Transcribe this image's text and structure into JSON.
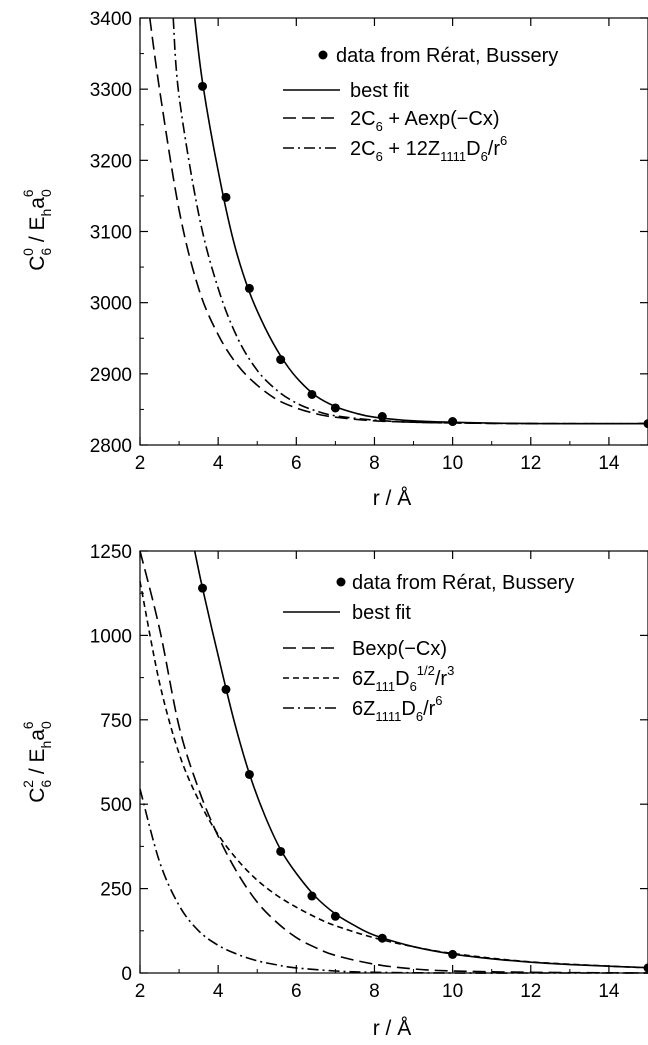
{
  "chart_data": [
    {
      "type": "line",
      "ylabel": "C₆⁰ / Eₕa₀⁶",
      "xlabel": "r / Å",
      "xlim": [
        2,
        15
      ],
      "ylim": [
        2800,
        3400
      ],
      "x_ticks": [
        2,
        4,
        6,
        8,
        10,
        12,
        14
      ],
      "y_ticks": [
        2800,
        2900,
        3000,
        3100,
        3200,
        3300,
        3400
      ],
      "grid": false,
      "legend_position": "top-right",
      "series": [
        {
          "name": "data from Rérat, Bussery",
          "style": "points",
          "x": [
            3.6,
            4.2,
            4.8,
            5.6,
            6.4,
            7.0,
            8.2,
            10.0,
            15.0
          ],
          "y": [
            3304,
            3148,
            3020,
            2920,
            2871,
            2852,
            2840,
            2833,
            2830
          ]
        },
        {
          "name": "best fit",
          "style": "solid",
          "x": [
            3.4,
            3.6,
            4.0,
            4.4,
            4.8,
            5.2,
            5.6,
            6.0,
            6.5,
            7.0,
            7.5,
            8.0,
            9.0,
            10.0,
            12.0,
            15.0
          ],
          "y": [
            3400,
            3310,
            3185,
            3085,
            3015,
            2965,
            2925,
            2895,
            2869,
            2854,
            2845,
            2839,
            2834,
            2832,
            2830,
            2830
          ]
        },
        {
          "name": "2C₆ + Aexp(−Cx)",
          "style": "dashed",
          "x": [
            2.25,
            2.5,
            3.0,
            3.5,
            4.0,
            4.5,
            5.0,
            5.5,
            6.0,
            6.5,
            7.0,
            8.0,
            9.0,
            10.0,
            12.0,
            15.0
          ],
          "y": [
            3400,
            3300,
            3130,
            3020,
            2955,
            2912,
            2884,
            2864,
            2852,
            2844,
            2839,
            2834,
            2832,
            2831,
            2830,
            2830
          ]
        },
        {
          "name": "2C₆ + 12Z₁₁₁₁D₆/r⁶",
          "style": "dashdot",
          "x": [
            2.85,
            3.0,
            3.5,
            4.0,
            4.5,
            5.0,
            5.5,
            6.0,
            6.5,
            7.0,
            8.0,
            9.0,
            10.0,
            12.0,
            15.0
          ],
          "y": [
            3400,
            3290,
            3125,
            3020,
            2950,
            2905,
            2877,
            2859,
            2848,
            2841,
            2835,
            2832,
            2831,
            2830,
            2830
          ]
        }
      ]
    },
    {
      "type": "line",
      "ylabel": "C₆² / Eₕa₀⁶",
      "xlabel": "r / Å",
      "xlim": [
        2,
        15
      ],
      "ylim": [
        0,
        1250
      ],
      "x_ticks": [
        2,
        4,
        6,
        8,
        10,
        12,
        14
      ],
      "y_ticks": [
        0,
        250,
        500,
        750,
        1000,
        1250
      ],
      "grid": false,
      "legend_position": "top-right",
      "series": [
        {
          "name": "data from Rérat, Bussery",
          "style": "points",
          "x": [
            3.6,
            4.2,
            4.8,
            5.6,
            6.4,
            7.0,
            8.2,
            10.0,
            15.0
          ],
          "y": [
            1140,
            840,
            588,
            360,
            228,
            168,
            103,
            55,
            15
          ]
        },
        {
          "name": "best fit",
          "style": "solid",
          "x": [
            3.4,
            3.6,
            4.0,
            4.4,
            4.8,
            5.2,
            5.6,
            6.0,
            6.5,
            7.0,
            7.5,
            8.0,
            9.0,
            10.0,
            11.0,
            12.0,
            13.0,
            14.0,
            15.0
          ],
          "y": [
            1250,
            1140,
            940,
            750,
            590,
            465,
            365,
            295,
            225,
            175,
            140,
            112,
            78,
            56,
            42,
            32,
            25,
            20,
            16
          ]
        },
        {
          "name": "Bexp(−Cx)",
          "style": "longdash",
          "x": [
            2.0,
            2.5,
            3.0,
            3.5,
            4.0,
            4.5,
            5.0,
            5.5,
            6.0,
            6.5,
            7.0,
            8.0,
            9.0,
            10.0,
            12.0,
            15.0
          ],
          "y": [
            1250,
            1020,
            730,
            545,
            405,
            295,
            210,
            150,
            105,
            75,
            52,
            26,
            12,
            6,
            2,
            0
          ]
        },
        {
          "name": "6Z₁₁₁D₆^(1/2)/r³",
          "style": "shortdash",
          "x": [
            2.0,
            2.5,
            3.0,
            3.5,
            4.0,
            4.5,
            5.0,
            5.5,
            6.0,
            6.5,
            7.0,
            8.0,
            9.0,
            10.0,
            12.0,
            15.0
          ],
          "y": [
            1160,
            860,
            650,
            512,
            410,
            334,
            275,
            230,
            195,
            165,
            140,
            104,
            78,
            58,
            33,
            15
          ]
        },
        {
          "name": "6Z₁₁₁₁D₆/r⁶",
          "style": "dashdot",
          "x": [
            2.0,
            2.5,
            3.0,
            3.5,
            4.0,
            4.5,
            5.0,
            5.5,
            6.0,
            7.0,
            8.0,
            10.0,
            12.0,
            15.0
          ],
          "y": [
            545,
            330,
            200,
            125,
            82,
            55,
            36,
            24,
            15,
            6,
            2,
            0,
            0,
            0
          ]
        }
      ]
    }
  ],
  "panels": [
    {
      "ylabel_main": "C",
      "ylabel_sub": "6",
      "ylabel_sup": "0",
      "ylabel_rest": " / E",
      "ylabel_sub2": "h",
      "ylabel_a": "a",
      "ylabel_sub3": "0",
      "ylabel_sup3": "6",
      "xlabel": "r / Å",
      "legend": [
        {
          "text": "data from Rérat, Bussery"
        },
        {
          "text": "best fit"
        },
        {
          "p1": "2C",
          "s1": "6",
          "p2": " + Aexp(−Cx)"
        },
        {
          "p1": "2C",
          "s1": "6",
          "p2": " + 12Z",
          "s2": "1111",
          "p3": "D",
          "s3": "6",
          "p4": "/r",
          "u4": "6"
        }
      ]
    },
    {
      "ylabel_main": "C",
      "ylabel_sub": "6",
      "ylabel_sup": "2",
      "ylabel_rest": " / E",
      "ylabel_sub2": "h",
      "ylabel_a": "a",
      "ylabel_sub3": "0",
      "ylabel_sup3": "6",
      "xlabel": "r / Å",
      "legend": [
        {
          "text": "data from Rérat, Bussery"
        },
        {
          "text": "best fit"
        },
        {
          "text": "Bexp(−Cx)"
        },
        {
          "p1": "6Z",
          "s1": "111",
          "p2": "D",
          "s2": "6",
          "u2": "1/2",
          "p3": "/r",
          "u3": "3"
        },
        {
          "p1": "6Z",
          "s1": "1111",
          "p2": "D",
          "s2": "6",
          "p3": "/r",
          "u3": "6"
        }
      ]
    }
  ]
}
